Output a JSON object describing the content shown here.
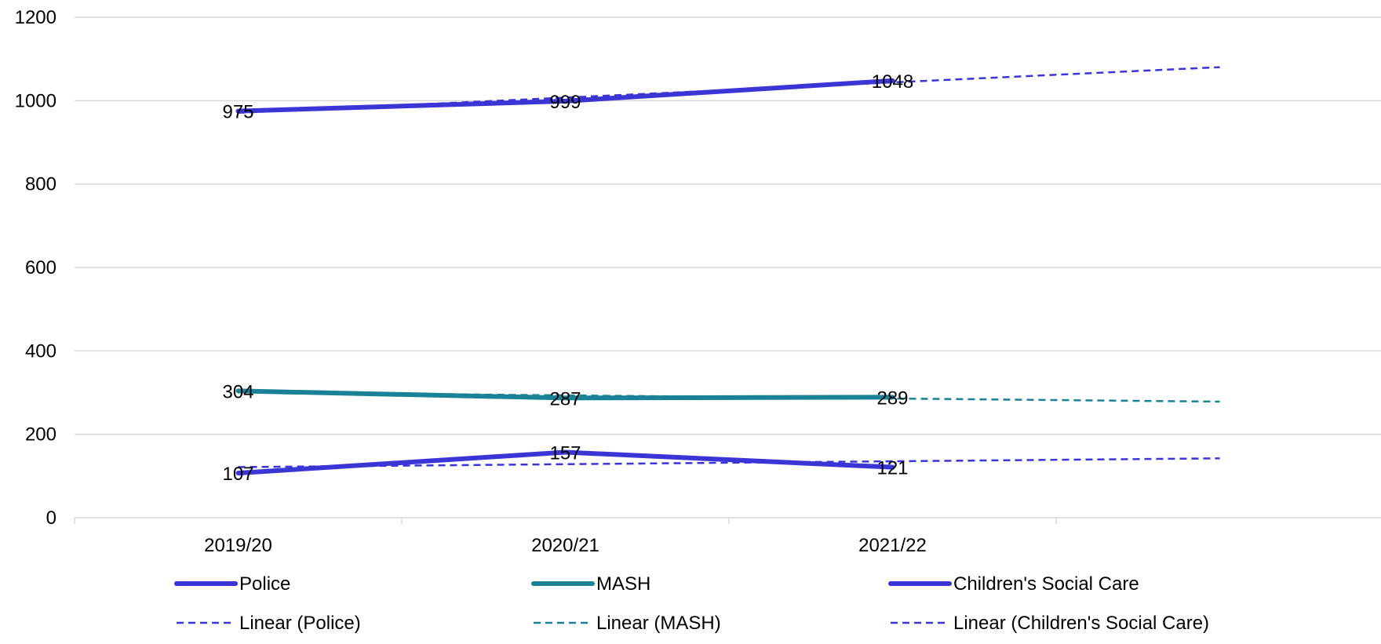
{
  "chart_data": {
    "type": "line",
    "categories": [
      "2019/20",
      "2020/21",
      "2021/22"
    ],
    "ylim": [
      0,
      1200
    ],
    "yticks": [
      0,
      200,
      400,
      600,
      800,
      1000,
      1200
    ],
    "grid": true,
    "legend_position": "bottom",
    "series": [
      {
        "name": "Police",
        "values": [
          975,
          999,
          1048
        ],
        "color": "#3b35d6",
        "style": "solid"
      },
      {
        "name": "MASH",
        "values": [
          304,
          287,
          289
        ],
        "color": "#1a8296",
        "style": "solid"
      },
      {
        "name": "Children's Social Care",
        "values": [
          107,
          157,
          121
        ],
        "color": "#3b35d6",
        "style": "solid"
      }
    ],
    "trendlines": [
      {
        "name": "Linear (Police)",
        "of": "Police",
        "color": "#3b35d6",
        "style": "dashed"
      },
      {
        "name": "Linear (MASH)",
        "of": "MASH",
        "color": "#1a8296",
        "style": "dashed"
      },
      {
        "name": "Linear (Children's Social Care)",
        "of": "Children's Social Care",
        "color": "#3b35d6",
        "style": "dashed"
      }
    ]
  }
}
